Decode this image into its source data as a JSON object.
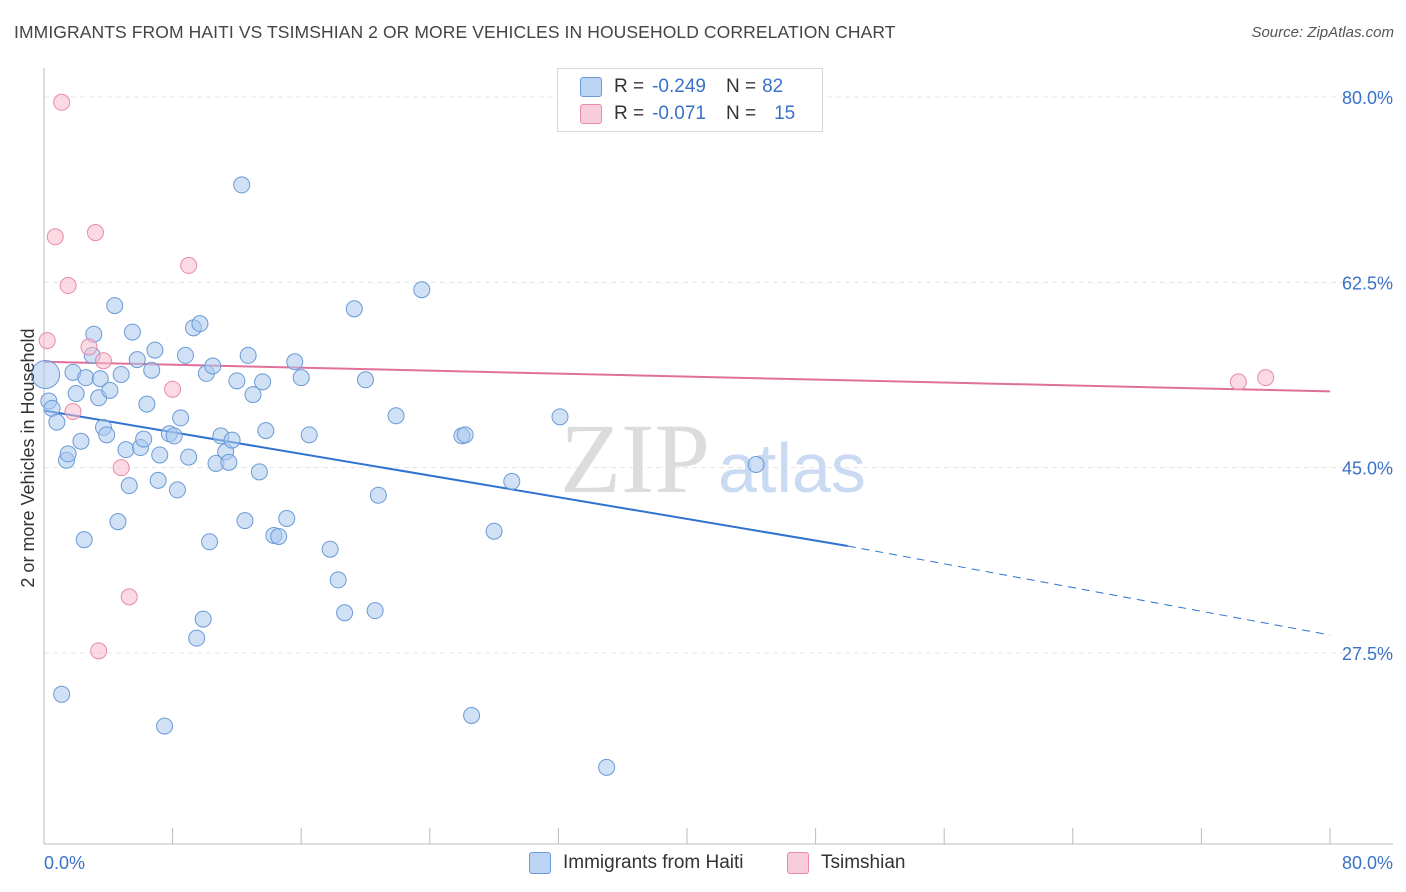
{
  "title": "IMMIGRANTS FROM HAITI VS TSIMSHIAN 2 OR MORE VEHICLES IN HOUSEHOLD CORRELATION CHART",
  "source": "Source: ZipAtlas.com",
  "watermark": {
    "zip": "ZIP",
    "atlas": "atlas"
  },
  "legend": {
    "rows": [
      {
        "r_label": "R =",
        "r_value": "-0.249",
        "n_label": "N =",
        "n_value": "82"
      },
      {
        "r_label": "R =",
        "r_value": "-0.071",
        "n_label": "N =",
        "n_value": "15"
      }
    ]
  },
  "colors": {
    "haiti_fill": "#a9c8ee",
    "haiti_stroke": "#6b9ad6",
    "haiti_line": "#2f72d0",
    "tsim_fill": "#f7bccd",
    "tsim_stroke": "#e88aa8",
    "tsim_line": "#e0709a",
    "grid": "#e4e4e4",
    "axis_text": "#3a72c8"
  },
  "chart_data": {
    "type": "scatter",
    "title": "IMMIGRANTS FROM HAITI VS TSIMSHIAN 2 OR MORE VEHICLES IN HOUSEHOLD CORRELATION CHART",
    "xlabel": "",
    "ylabel": "2 or more Vehicles in Household",
    "xlim": [
      0,
      80
    ],
    "ylim": [
      10,
      82
    ],
    "x_tick_labels": [
      "0.0%",
      "80.0%"
    ],
    "y_ticks": [
      27.5,
      45.0,
      62.5,
      80.0
    ],
    "y_tick_labels": [
      "27.5%",
      "45.0%",
      "62.5%",
      "80.0%"
    ],
    "grid": true,
    "legend_position": "top-center",
    "series": [
      {
        "name": "Immigrants from Haiti",
        "r": -0.249,
        "n": 82,
        "trend": {
          "x0": 0,
          "y0": 50.4,
          "x1": 50,
          "y1": 37.6,
          "x_dash_end": 80,
          "y_dash_end": 29.2
        },
        "points": [
          [
            0.1,
            53.8
          ],
          [
            0.3,
            51.3
          ],
          [
            0.5,
            50.6
          ],
          [
            0.8,
            49.3
          ],
          [
            1.1,
            23.6
          ],
          [
            1.4,
            45.7
          ],
          [
            1.5,
            46.3
          ],
          [
            1.8,
            54.0
          ],
          [
            2.0,
            52.0
          ],
          [
            2.3,
            47.5
          ],
          [
            2.5,
            38.2
          ],
          [
            2.6,
            53.5
          ],
          [
            3.0,
            55.6
          ],
          [
            3.1,
            57.6
          ],
          [
            3.4,
            51.6
          ],
          [
            3.5,
            53.4
          ],
          [
            3.7,
            48.8
          ],
          [
            3.9,
            48.1
          ],
          [
            4.1,
            52.3
          ],
          [
            4.4,
            60.3
          ],
          [
            4.6,
            39.9
          ],
          [
            4.8,
            53.8
          ],
          [
            5.1,
            46.7
          ],
          [
            5.3,
            43.3
          ],
          [
            5.5,
            57.8
          ],
          [
            5.8,
            55.2
          ],
          [
            6.0,
            46.9
          ],
          [
            6.2,
            47.7
          ],
          [
            6.4,
            51.0
          ],
          [
            6.7,
            54.2
          ],
          [
            6.9,
            56.1
          ],
          [
            7.1,
            43.8
          ],
          [
            7.2,
            46.2
          ],
          [
            7.5,
            20.6
          ],
          [
            7.8,
            48.2
          ],
          [
            8.1,
            48.0
          ],
          [
            8.3,
            42.9
          ],
          [
            8.5,
            49.7
          ],
          [
            8.8,
            55.6
          ],
          [
            9.0,
            46.0
          ],
          [
            9.3,
            58.2
          ],
          [
            9.5,
            28.9
          ],
          [
            9.7,
            58.6
          ],
          [
            9.9,
            30.7
          ],
          [
            10.1,
            53.9
          ],
          [
            10.3,
            38.0
          ],
          [
            10.5,
            54.6
          ],
          [
            10.7,
            45.4
          ],
          [
            11.0,
            48.0
          ],
          [
            11.3,
            46.5
          ],
          [
            11.5,
            45.5
          ],
          [
            11.7,
            47.6
          ],
          [
            12.0,
            53.2
          ],
          [
            12.3,
            71.7
          ],
          [
            12.5,
            40.0
          ],
          [
            12.7,
            55.6
          ],
          [
            13.0,
            51.9
          ],
          [
            13.4,
            44.6
          ],
          [
            13.6,
            53.1
          ],
          [
            13.8,
            48.5
          ],
          [
            14.3,
            38.6
          ],
          [
            14.6,
            38.5
          ],
          [
            15.1,
            40.2
          ],
          [
            15.6,
            55.0
          ],
          [
            16.0,
            53.5
          ],
          [
            16.5,
            48.1
          ],
          [
            17.8,
            37.3
          ],
          [
            18.3,
            34.4
          ],
          [
            18.7,
            31.3
          ],
          [
            19.3,
            60.0
          ],
          [
            20.0,
            53.3
          ],
          [
            20.6,
            31.5
          ],
          [
            20.8,
            42.4
          ],
          [
            21.9,
            49.9
          ],
          [
            23.5,
            61.8
          ],
          [
            26.0,
            48.0
          ],
          [
            26.2,
            48.1
          ],
          [
            26.6,
            21.6
          ],
          [
            28.0,
            39.0
          ],
          [
            29.1,
            43.7
          ],
          [
            32.1,
            49.8
          ],
          [
            35.0,
            16.7
          ],
          [
            44.3,
            45.3
          ]
        ]
      },
      {
        "name": "Tsimshian",
        "r": -0.071,
        "n": 15,
        "trend": {
          "x0": 0,
          "y0": 55.0,
          "x1": 80,
          "y1": 52.2
        },
        "points": [
          [
            0.2,
            57.0
          ],
          [
            0.7,
            66.8
          ],
          [
            1.1,
            79.5
          ],
          [
            1.5,
            62.2
          ],
          [
            1.8,
            50.3
          ],
          [
            2.8,
            56.4
          ],
          [
            3.2,
            67.2
          ],
          [
            3.4,
            27.7
          ],
          [
            3.7,
            55.1
          ],
          [
            4.8,
            45.0
          ],
          [
            5.3,
            32.8
          ],
          [
            8.0,
            52.4
          ],
          [
            9.0,
            64.1
          ],
          [
            74.3,
            53.1
          ],
          [
            76.0,
            53.5
          ]
        ]
      }
    ]
  },
  "bottom_legend": {
    "haiti_label": "Immigrants from Haiti",
    "tsim_label": "Tsimshian"
  }
}
